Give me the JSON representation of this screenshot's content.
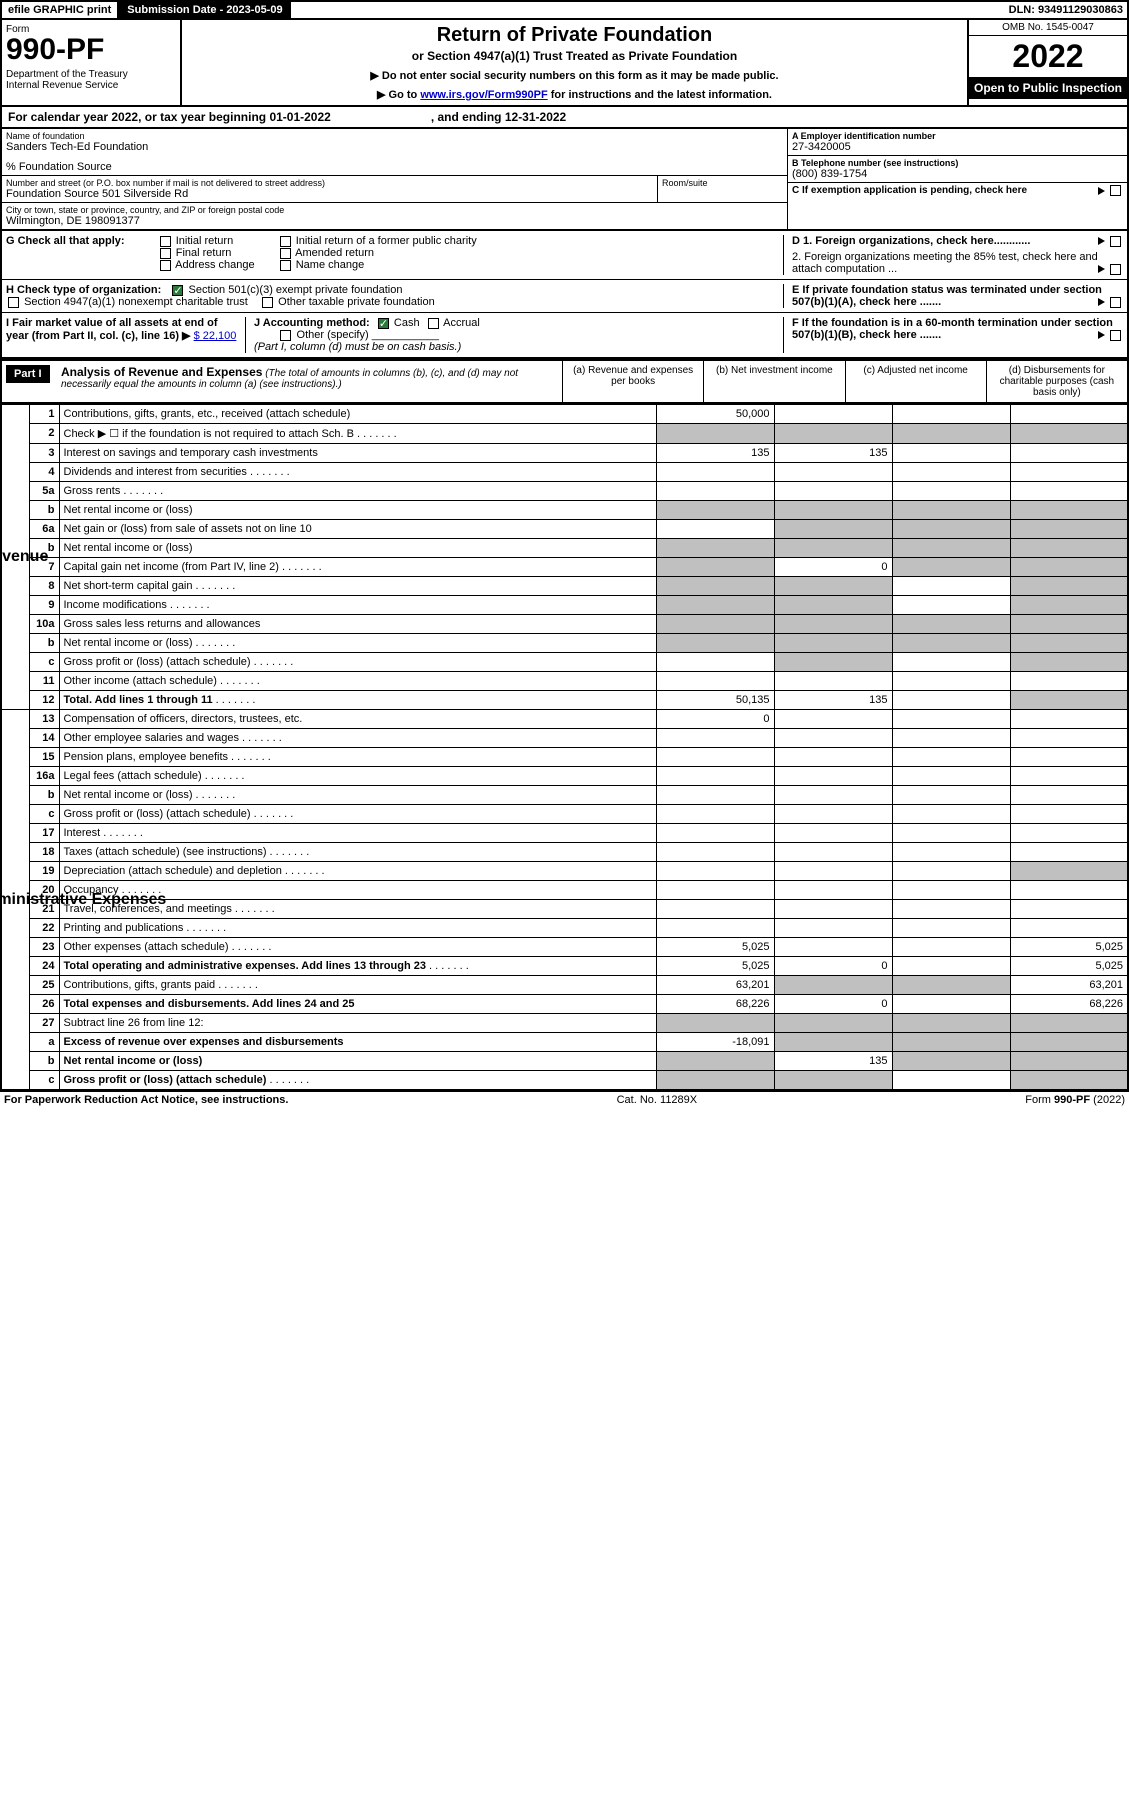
{
  "top": {
    "efile": "efile GRAPHIC print",
    "submission": "Submission Date - 2023-05-09",
    "dln": "DLN: 93491129030863"
  },
  "header": {
    "form_label": "Form",
    "form_num": "990-PF",
    "dept": "Department of the Treasury\nInternal Revenue Service",
    "title": "Return of Private Foundation",
    "subtitle": "or Section 4947(a)(1) Trust Treated as Private Foundation",
    "instr1": "▶ Do not enter social security numbers on this form as it may be made public.",
    "instr2_pre": "▶ Go to ",
    "instr2_link": "www.irs.gov/Form990PF",
    "instr2_post": " for instructions and the latest information.",
    "omb": "OMB No. 1545-0047",
    "year": "2022",
    "inspect": "Open to Public Inspection"
  },
  "calendar": "For calendar year 2022, or tax year beginning 01-01-2022                              , and ending 12-31-2022",
  "info": {
    "name_lbl": "Name of foundation",
    "name_val": "Sanders Tech-Ed Foundation",
    "pct": "% Foundation Source",
    "addr_lbl": "Number and street (or P.O. box number if mail is not delivered to street address)",
    "addr_val": "Foundation Source 501 Silverside Rd",
    "room_lbl": "Room/suite",
    "city_lbl": "City or town, state or province, country, and ZIP or foreign postal code",
    "city_val": "Wilmington, DE  198091377",
    "ein_lbl": "A Employer identification number",
    "ein_val": "27-3420005",
    "phone_lbl": "B Telephone number (see instructions)",
    "phone_val": "(800) 839-1754",
    "c_lbl": "C If exemption application is pending, check here"
  },
  "sectG": {
    "lbl": "G Check all that apply:",
    "o1": "Initial return",
    "o2": "Final return",
    "o3": "Address change",
    "o4": "Initial return of a former public charity",
    "o5": "Amended return",
    "o6": "Name change"
  },
  "sectH": {
    "lbl": "H Check type of organization:",
    "o1": "Section 501(c)(3) exempt private foundation",
    "o2": "Section 4947(a)(1) nonexempt charitable trust",
    "o3": "Other taxable private foundation"
  },
  "sectI": {
    "lbl": "I Fair market value of all assets at end of year (from Part II, col. (c), line 16) ▶",
    "val": "$  22,100"
  },
  "sectJ": {
    "lbl": "J Accounting method:",
    "cash": "Cash",
    "accrual": "Accrual",
    "other": "Other (specify)",
    "note": "(Part I, column (d) must be on cash basis.)"
  },
  "sectD": {
    "d1": "D 1. Foreign organizations, check here............",
    "d2": "2. Foreign organizations meeting the 85% test, check here and attach computation ..."
  },
  "sectE": "E  If private foundation status was terminated under section 507(b)(1)(A), check here .......",
  "sectF": "F  If the foundation is in a 60-month termination under section 507(b)(1)(B), check here .......",
  "part1": {
    "label": "Part I",
    "title": "Analysis of Revenue and Expenses",
    "note": " (The total of amounts in columns (b), (c), and (d) may not necessarily equal the amounts in column (a) (see instructions).)",
    "cols": {
      "a": "(a) Revenue and expenses per books",
      "b": "(b) Net investment income",
      "c": "(c) Adjusted net income",
      "d": "(d) Disbursements for charitable purposes (cash basis only)"
    }
  },
  "vlabels": {
    "rev": "Revenue",
    "exp": "Operating and Administrative Expenses"
  },
  "rows": [
    {
      "n": "1",
      "d": "",
      "a": "50,000",
      "b": "",
      "c": ""
    },
    {
      "n": "2",
      "d": "",
      "dots": true,
      "a": "",
      "b": "",
      "c": "",
      "grey_bcd": true,
      "grey_a": true
    },
    {
      "n": "3",
      "d": "",
      "a": "135",
      "b": "135",
      "c": ""
    },
    {
      "n": "4",
      "d": "",
      "dots": true,
      "a": "",
      "b": "",
      "c": ""
    },
    {
      "n": "5a",
      "d": "",
      "dots": true,
      "a": "",
      "b": "",
      "c": ""
    },
    {
      "n": "b",
      "d": "",
      "inline": true,
      "a": "",
      "b": "",
      "c": "",
      "grey_row": true
    },
    {
      "n": "6a",
      "d": "",
      "a": "",
      "b": "",
      "c": "",
      "grey_bcd": true
    },
    {
      "n": "b",
      "d": "",
      "inline": true,
      "a": "",
      "b": "",
      "c": "",
      "grey_row": true
    },
    {
      "n": "7",
      "d": "",
      "dots": true,
      "a": "",
      "b": "0",
      "c": "",
      "grey_a": true,
      "grey_cd": true
    },
    {
      "n": "8",
      "d": "",
      "dots": true,
      "a": "",
      "b": "",
      "c": "",
      "grey_ab": true,
      "grey_d": true
    },
    {
      "n": "9",
      "d": "",
      "dots": true,
      "a": "",
      "b": "",
      "c": "",
      "grey_ab": true,
      "grey_d": true
    },
    {
      "n": "10a",
      "d": "",
      "inline": true,
      "a": "",
      "b": "",
      "c": "",
      "grey_row": true
    },
    {
      "n": "b",
      "d": "",
      "dots": true,
      "inline": true,
      "a": "",
      "b": "",
      "c": "",
      "grey_row": true
    },
    {
      "n": "c",
      "d": "",
      "dots": true,
      "a": "",
      "b": "",
      "c": "",
      "grey_b": true,
      "grey_d": true
    },
    {
      "n": "11",
      "d": "",
      "dots": true,
      "a": "",
      "b": "",
      "c": ""
    },
    {
      "n": "12",
      "d": "",
      "bold": true,
      "dots": true,
      "a": "50,135",
      "b": "135",
      "c": "",
      "grey_d": true
    }
  ],
  "exp_rows": [
    {
      "n": "13",
      "d": "",
      "a": "0",
      "b": "",
      "c": ""
    },
    {
      "n": "14",
      "d": "",
      "dots": true,
      "a": "",
      "b": "",
      "c": ""
    },
    {
      "n": "15",
      "d": "",
      "dots": true,
      "a": "",
      "b": "",
      "c": ""
    },
    {
      "n": "16a",
      "d": "",
      "dots": true,
      "a": "",
      "b": "",
      "c": ""
    },
    {
      "n": "b",
      "d": "",
      "dots": true,
      "a": "",
      "b": "",
      "c": ""
    },
    {
      "n": "c",
      "d": "",
      "dots": true,
      "a": "",
      "b": "",
      "c": ""
    },
    {
      "n": "17",
      "d": "",
      "dots": true,
      "a": "",
      "b": "",
      "c": ""
    },
    {
      "n": "18",
      "d": "",
      "dots": true,
      "a": "",
      "b": "",
      "c": ""
    },
    {
      "n": "19",
      "d": "",
      "dots": true,
      "a": "",
      "b": "",
      "c": "",
      "grey_d": true
    },
    {
      "n": "20",
      "d": "",
      "dots": true,
      "a": "",
      "b": "",
      "c": ""
    },
    {
      "n": "21",
      "d": "",
      "dots": true,
      "a": "",
      "b": "",
      "c": ""
    },
    {
      "n": "22",
      "d": "",
      "dots": true,
      "a": "",
      "b": "",
      "c": ""
    },
    {
      "n": "23",
      "d": "5,025",
      "dots": true,
      "a": "5,025",
      "b": "",
      "c": ""
    },
    {
      "n": "24",
      "d": "5,025",
      "bold": true,
      "dots": true,
      "a": "5,025",
      "b": "0",
      "c": ""
    },
    {
      "n": "25",
      "d": "63,201",
      "dots": true,
      "a": "63,201",
      "b": "",
      "c": "",
      "grey_bc": true
    },
    {
      "n": "26",
      "d": "68,226",
      "bold": true,
      "a": "68,226",
      "b": "0",
      "c": ""
    }
  ],
  "bottom_rows": [
    {
      "n": "27",
      "d": "",
      "a": "",
      "b": "",
      "c": "",
      "grey_row": true
    },
    {
      "n": "a",
      "d": "",
      "bold": true,
      "a": "-18,091",
      "b": "",
      "c": "",
      "grey_bcd": true
    },
    {
      "n": "b",
      "d": "",
      "bold": true,
      "a": "",
      "b": "135",
      "c": "",
      "grey_a": true,
      "grey_cd": true
    },
    {
      "n": "c",
      "d": "",
      "bold": true,
      "dots": true,
      "a": "",
      "b": "",
      "c": "",
      "grey_ab": true,
      "grey_d": true
    }
  ],
  "footer": {
    "left": "For Paperwork Reduction Act Notice, see instructions.",
    "mid": "Cat. No. 11289X",
    "right": "Form 990-PF (2022)"
  }
}
